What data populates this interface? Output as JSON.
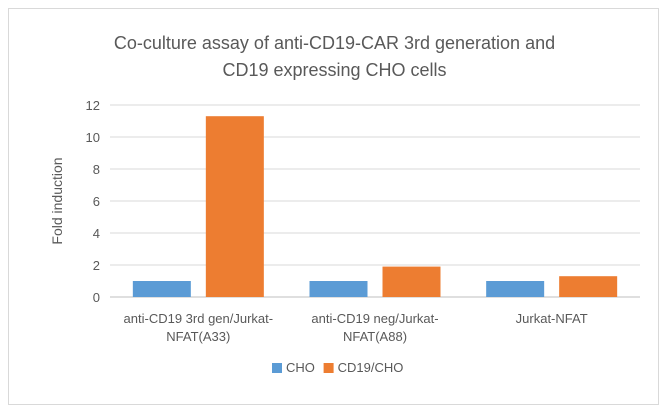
{
  "chart_data": {
    "type": "bar",
    "title": "Co-culture assay of anti-CD19-CAR 3rd generation  and\nCD19 expressing CHO cells",
    "xlabel": "",
    "ylabel": "Fold induction",
    "ylim": [
      0,
      12
    ],
    "yticks": [
      0,
      2,
      4,
      6,
      8,
      10,
      12
    ],
    "grid": true,
    "legend_position": "bottom",
    "categories": [
      [
        "anti-CD19 3rd gen/Jurkat-",
        "NFAT(A33)"
      ],
      [
        "anti-CD19 neg/Jurkat-",
        "NFAT(A88)"
      ],
      [
        "Jurkat-NFAT"
      ]
    ],
    "series": [
      {
        "name": "CHO",
        "color": "#5b9bd5",
        "values": [
          1.0,
          1.0,
          1.0
        ]
      },
      {
        "name": "CD19/CHO",
        "color": "#ed7d31",
        "values": [
          11.3,
          1.9,
          1.3
        ]
      }
    ]
  }
}
